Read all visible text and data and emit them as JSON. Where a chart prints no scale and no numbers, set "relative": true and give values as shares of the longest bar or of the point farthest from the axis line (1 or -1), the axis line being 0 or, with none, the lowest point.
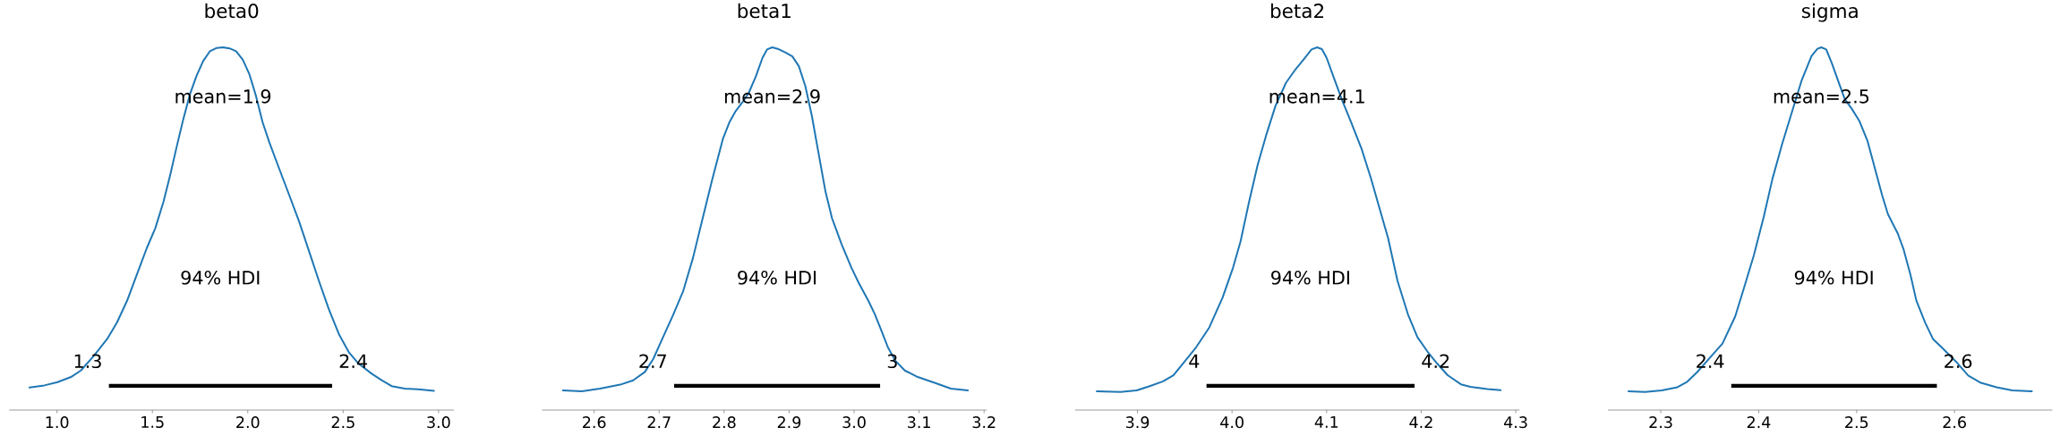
{
  "chart_data": [
    {
      "type": "line",
      "title": "beta0",
      "relative": true,
      "xlim": [
        0.75,
        3.08
      ],
      "xticks": [
        {
          "value": 1,
          "label": "1.0"
        },
        1.5,
        {
          "value": 2,
          "label": "2.0"
        },
        2.5,
        {
          "value": 3,
          "label": "3.0"
        }
      ],
      "series": [
        {
          "color": "#1f77b4",
          "x": [
            0.856,
            0.934,
            1.003,
            1.073,
            1.125,
            1.194,
            1.263,
            1.315,
            1.367,
            1.419,
            1.471,
            1.515,
            1.558,
            1.593,
            1.627,
            1.662,
            1.697,
            1.731,
            1.766,
            1.801,
            1.835,
            1.87,
            1.905,
            1.939,
            1.974,
            2.009,
            2.043,
            2.078,
            2.113,
            2.165,
            2.217,
            2.269,
            2.321,
            2.373,
            2.425,
            2.477,
            2.529,
            2.581,
            2.65,
            2.702,
            2.754,
            2.823,
            2.893,
            2.976
          ],
          "values": [
            0.062,
            0.068,
            0.077,
            0.091,
            0.109,
            0.15,
            0.196,
            0.242,
            0.301,
            0.374,
            0.447,
            0.501,
            0.574,
            0.647,
            0.725,
            0.802,
            0.871,
            0.921,
            0.962,
            0.989,
            0.998,
            1.0,
            0.997,
            0.989,
            0.966,
            0.925,
            0.866,
            0.793,
            0.738,
            0.665,
            0.593,
            0.52,
            0.438,
            0.356,
            0.278,
            0.21,
            0.16,
            0.128,
            0.1,
            0.082,
            0.066,
            0.059,
            0.057,
            0.053
          ]
        },
        {
          "color": "#000000",
          "x": [
            1.272,
            2.442
          ],
          "values": [
            0.067,
            0.067
          ]
        }
      ],
      "annotations": [
        "mean=1.9",
        "94% HDI",
        {
          "text": "1.3",
          "x": 1.272,
          "y": 0.067
        },
        {
          "text": "2.4",
          "x": 2.442,
          "y": 0.067
        }
      ]
    },
    {
      "type": "line",
      "title": "beta1",
      "relative": true,
      "xlim": [
        2.52,
        3.204
      ],
      "xticks": [
        2.6,
        2.7,
        2.8,
        2.9,
        {
          "value": 3,
          "label": "3.0"
        },
        3.1,
        3.2
      ],
      "series": [
        {
          "color": "#1f77b4",
          "x": [
            2.552,
            2.581,
            2.609,
            2.64,
            2.66,
            2.678,
            2.691,
            2.706,
            2.721,
            2.737,
            2.752,
            2.767,
            2.782,
            2.798,
            2.808,
            2.818,
            2.828,
            2.838,
            2.849,
            2.859,
            2.866,
            2.874,
            2.884,
            2.894,
            2.905,
            2.915,
            2.925,
            2.935,
            2.945,
            2.956,
            2.966,
            2.981,
            2.996,
            3.007,
            3.022,
            3.032,
            3.042,
            3.052,
            3.063,
            3.078,
            3.098,
            3.124,
            3.149,
            3.175
          ],
          "values": [
            0.054,
            0.052,
            0.059,
            0.07,
            0.082,
            0.105,
            0.141,
            0.201,
            0.26,
            0.328,
            0.419,
            0.529,
            0.638,
            0.747,
            0.793,
            0.825,
            0.848,
            0.875,
            0.921,
            0.971,
            0.994,
            1.0,
            0.995,
            0.986,
            0.975,
            0.948,
            0.893,
            0.811,
            0.711,
            0.602,
            0.529,
            0.456,
            0.392,
            0.351,
            0.301,
            0.264,
            0.219,
            0.173,
            0.137,
            0.109,
            0.091,
            0.075,
            0.059,
            0.054
          ]
        },
        {
          "color": "#000000",
          "x": [
            2.723,
            3.04
          ],
          "values": [
            0.067,
            0.067
          ]
        }
      ],
      "annotations": [
        "mean=2.9",
        "94% HDI",
        {
          "text": "2.7",
          "x": 2.723,
          "y": 0.067
        },
        {
          "text": "3",
          "x": 3.04,
          "y": 0.067
        }
      ]
    },
    {
      "type": "line",
      "title": "beta2",
      "relative": true,
      "xlim": [
        3.834,
        4.304
      ],
      "xticks": [
        3.9,
        {
          "value": 4,
          "label": "4.0"
        },
        4.1,
        4.2,
        4.3
      ],
      "series": [
        {
          "color": "#1f77b4",
          "x": [
            3.857,
            3.882,
            3.899,
            3.913,
            3.927,
            3.938,
            3.948,
            3.962,
            3.976,
            3.99,
            4.001,
            4.009,
            4.018,
            4.027,
            4.036,
            4.046,
            4.057,
            4.067,
            4.077,
            4.084,
            4.09,
            4.095,
            4.1,
            4.107,
            4.116,
            4.126,
            4.137,
            4.147,
            4.154,
            4.165,
            4.175,
            4.186,
            4.196,
            4.207,
            4.217,
            4.228,
            4.242,
            4.252,
            4.27,
            4.284
          ],
          "values": [
            0.052,
            0.05,
            0.054,
            0.066,
            0.079,
            0.096,
            0.128,
            0.173,
            0.228,
            0.31,
            0.392,
            0.465,
            0.574,
            0.675,
            0.757,
            0.839,
            0.902,
            0.939,
            0.971,
            0.994,
            1.0,
            0.995,
            0.971,
            0.921,
            0.857,
            0.793,
            0.72,
            0.638,
            0.574,
            0.474,
            0.356,
            0.264,
            0.201,
            0.16,
            0.128,
            0.096,
            0.071,
            0.064,
            0.058,
            0.055
          ]
        },
        {
          "color": "#000000",
          "x": [
            3.973,
            4.193
          ],
          "values": [
            0.067,
            0.067
          ]
        }
      ],
      "annotations": [
        "mean=4.1",
        "94% HDI",
        {
          "text": "4",
          "x": 3.973,
          "y": 0.067
        },
        {
          "text": "4.2",
          "x": 4.193,
          "y": 0.067
        }
      ]
    },
    {
      "type": "line",
      "title": "sigma",
      "relative": true,
      "xlim": [
        2.246,
        2.7
      ],
      "xticks": [
        2.3,
        2.4,
        2.5,
        2.6
      ],
      "series": [
        {
          "color": "#1f77b4",
          "x": [
            2.267,
            2.284,
            2.301,
            2.317,
            2.327,
            2.337,
            2.35,
            2.363,
            2.376,
            2.385,
            2.395,
            2.405,
            2.414,
            2.424,
            2.434,
            2.444,
            2.454,
            2.46,
            2.464,
            2.469,
            2.475,
            2.482,
            2.488,
            2.495,
            2.503,
            2.511,
            2.519,
            2.526,
            2.532,
            2.542,
            2.548,
            2.555,
            2.561,
            2.57,
            2.578,
            2.588,
            2.601,
            2.614,
            2.627,
            2.643,
            2.659,
            2.679
          ],
          "values": [
            0.052,
            0.05,
            0.054,
            0.063,
            0.078,
            0.104,
            0.144,
            0.183,
            0.258,
            0.337,
            0.426,
            0.531,
            0.637,
            0.734,
            0.822,
            0.91,
            0.976,
            0.996,
            1.0,
            0.994,
            0.954,
            0.901,
            0.857,
            0.831,
            0.796,
            0.743,
            0.663,
            0.593,
            0.54,
            0.487,
            0.443,
            0.373,
            0.302,
            0.241,
            0.196,
            0.17,
            0.135,
            0.095,
            0.075,
            0.063,
            0.054,
            0.052
          ]
        },
        {
          "color": "#000000",
          "x": [
            2.372,
            2.582
          ],
          "values": [
            0.067,
            0.067
          ]
        }
      ],
      "annotations": [
        "mean=2.5",
        "94% HDI",
        {
          "text": "2.4",
          "x": 2.372,
          "y": 0.067
        },
        {
          "text": "2.6",
          "x": 2.582,
          "y": 0.067
        }
      ]
    }
  ]
}
